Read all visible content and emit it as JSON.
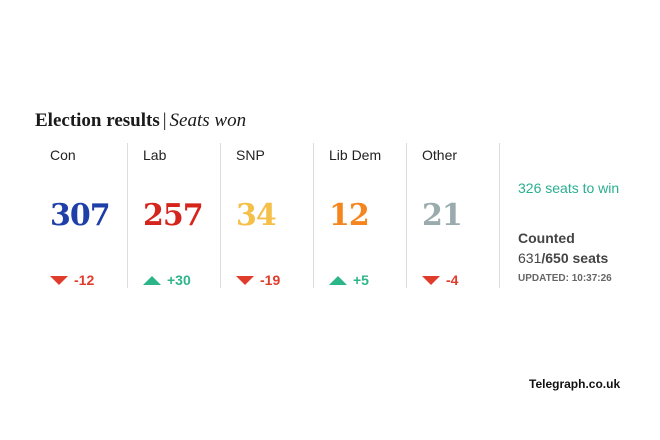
{
  "title": {
    "main": "Election results",
    "separator": "|",
    "sub": "Seats won"
  },
  "parties": [
    {
      "name": "Con",
      "seats": "307",
      "color": "#1f3fa8",
      "direction": "down",
      "change": "-12",
      "change_color": "#e03c2c"
    },
    {
      "name": "Lab",
      "seats": "257",
      "color": "#d5241c",
      "direction": "up",
      "change": "+30",
      "change_color": "#2db58a"
    },
    {
      "name": "SNP",
      "seats": "34",
      "color": "#f5c04a",
      "direction": "down",
      "change": "-19",
      "change_color": "#e03c2c"
    },
    {
      "name": "Lib Dem",
      "seats": "12",
      "color": "#f5861f",
      "direction": "up",
      "change": "+5",
      "change_color": "#2db58a"
    },
    {
      "name": "Other",
      "seats": "21",
      "color": "#9aabae",
      "direction": "down",
      "change": "-4",
      "change_color": "#e03c2c"
    }
  ],
  "summary": {
    "to_win": "326 seats to win",
    "counted_label": "Counted",
    "counted_count": "631",
    "counted_total": "/650 seats",
    "updated": "UPDATED: 10:37:26"
  },
  "source": "Telegraph.co.uk"
}
